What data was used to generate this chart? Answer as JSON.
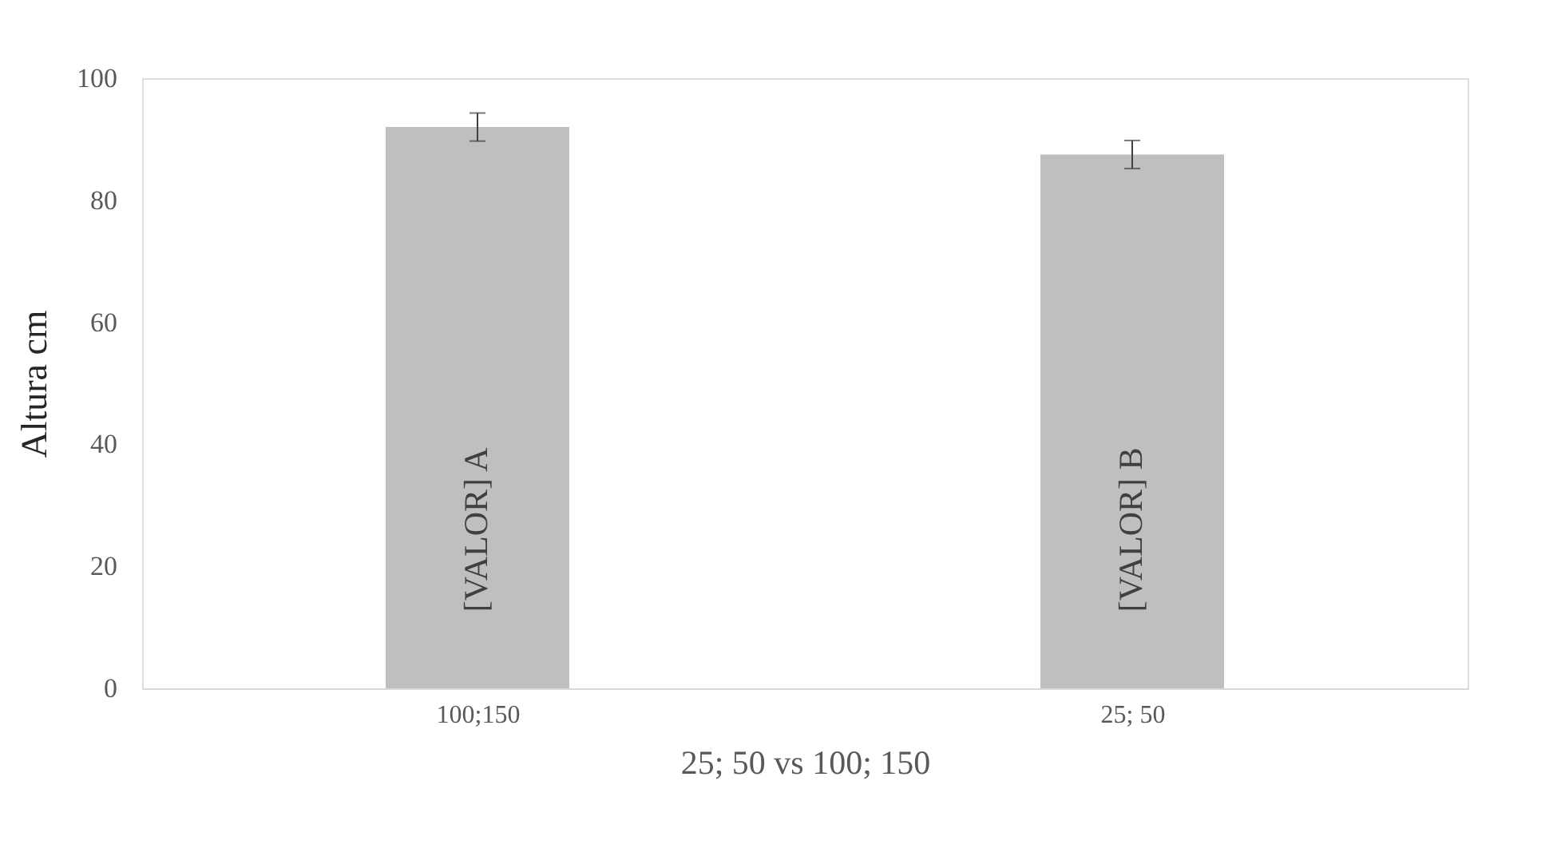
{
  "chart_data": {
    "type": "bar",
    "xlabel": "25; 50 vs 100; 150",
    "ylabel": "Altura cm",
    "categories": [
      "100;150",
      "25; 50"
    ],
    "values": [
      92,
      87.5
    ],
    "color": "#bfbfbf",
    "errors": [
      2.3,
      2.3
    ],
    "value_labels": [
      "[VALOR] A",
      "[VALOR] B"
    ],
    "ylim": [
      0,
      100
    ],
    "yticks": [
      0,
      20,
      40,
      60,
      80,
      100
    ],
    "grid": false
  }
}
